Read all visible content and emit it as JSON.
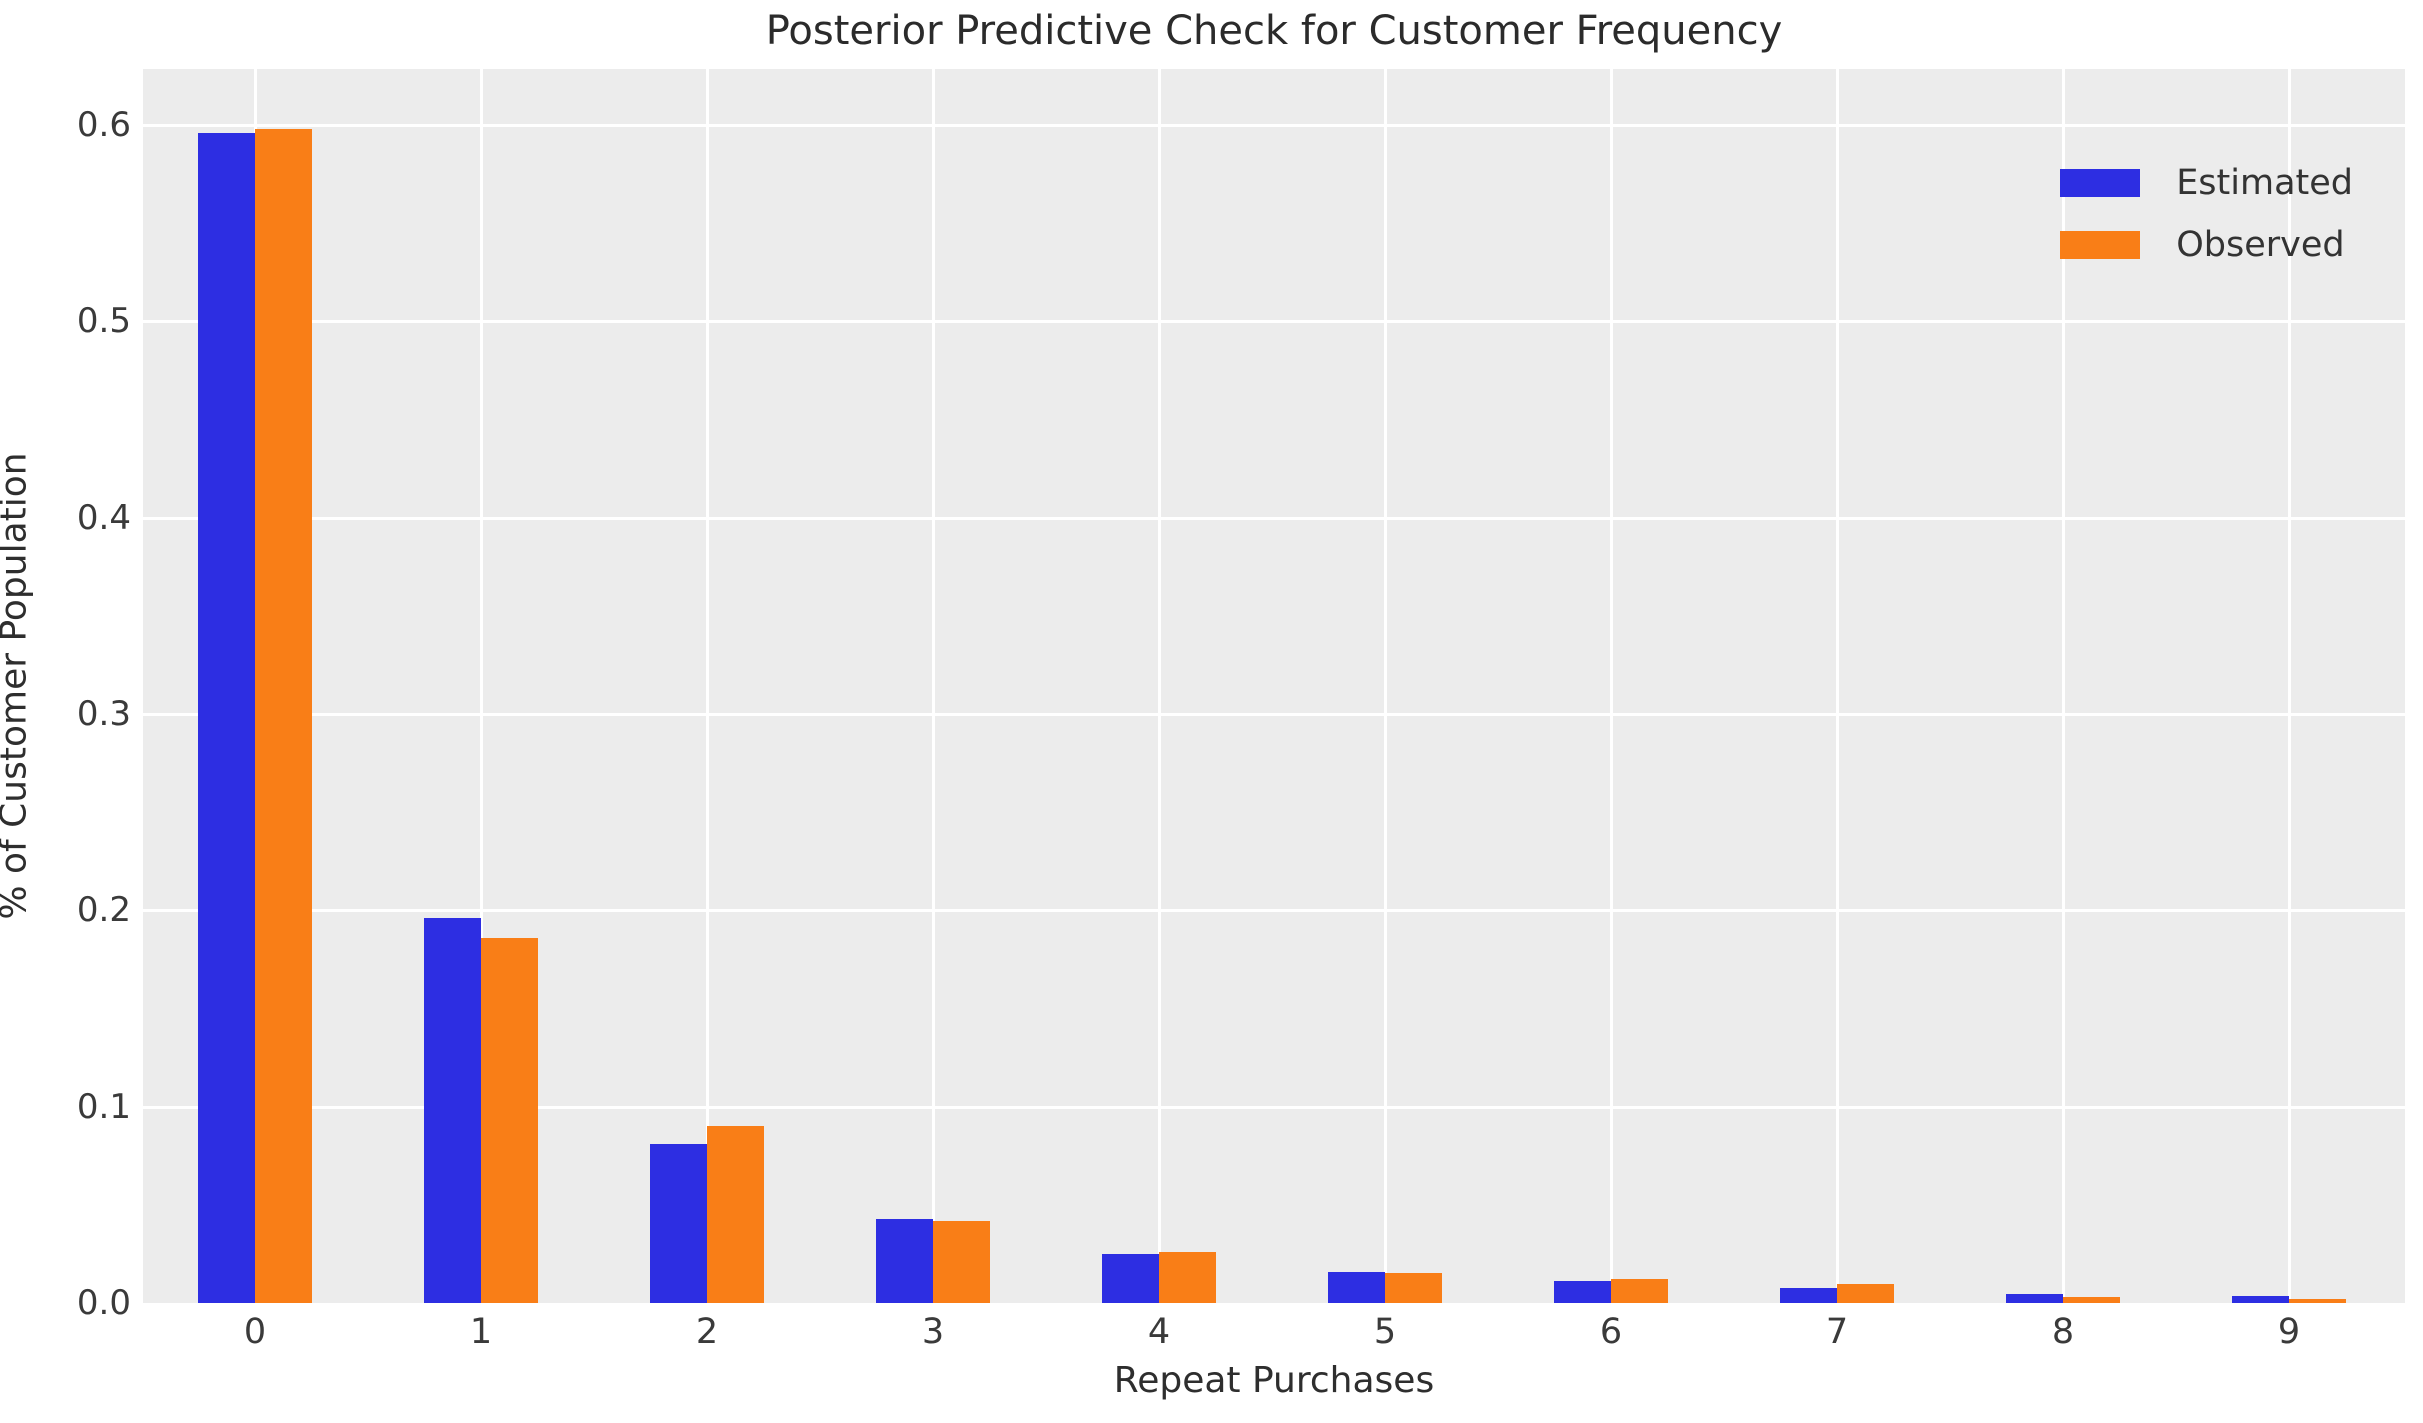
{
  "chart_data": {
    "type": "bar",
    "title": "Posterior Predictive Check for Customer Frequency",
    "xlabel": "Repeat Purchases",
    "ylabel": "% of Customer Population",
    "categories": [
      "0",
      "1",
      "2",
      "3",
      "4",
      "5",
      "6",
      "7",
      "8",
      "9"
    ],
    "series": [
      {
        "name": "Estimated",
        "color": "#2d2ee2",
        "values": [
          0.596,
          0.196,
          0.081,
          0.043,
          0.025,
          0.016,
          0.011,
          0.0075,
          0.0047,
          0.0036
        ]
      },
      {
        "name": "Observed",
        "color": "#f97e17",
        "values": [
          0.598,
          0.186,
          0.09,
          0.042,
          0.026,
          0.0155,
          0.012,
          0.0095,
          0.0029,
          0.0019
        ]
      }
    ],
    "y_tick_labels": [
      "0.0",
      "0.1",
      "0.2",
      "0.3",
      "0.4",
      "0.5",
      "0.6"
    ],
    "y_tick_values": [
      0.0,
      0.1,
      0.2,
      0.3,
      0.4,
      0.5,
      0.6
    ],
    "ylim": [
      0,
      0.6285
    ],
    "grid": true,
    "legend_position": "upper right",
    "colors": {
      "plot_background": "#ececec",
      "gridline": "#ffffff",
      "text": "#3a3a3a",
      "figure_background": "#ffffff"
    }
  }
}
